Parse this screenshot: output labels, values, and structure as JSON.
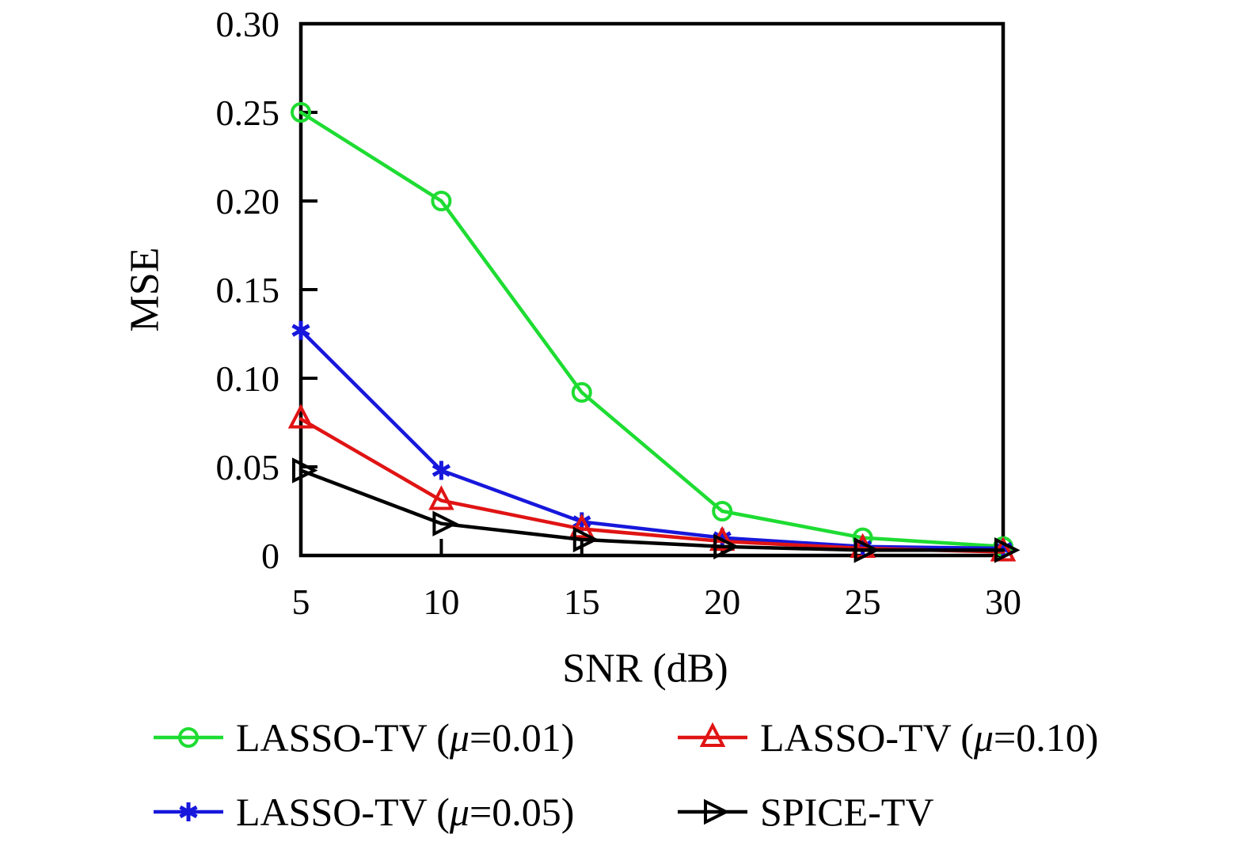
{
  "chart_data": {
    "type": "line",
    "title": "",
    "xlabel": "SNR (dB)",
    "ylabel": "MSE",
    "x": [
      5,
      10,
      15,
      20,
      25,
      30
    ],
    "xlim": [
      5,
      30
    ],
    "ylim": [
      0,
      0.3
    ],
    "x_ticks": [
      "5",
      "10",
      "15",
      "20",
      "25",
      "30"
    ],
    "y_tick_values": [
      0,
      0.05,
      0.1,
      0.15,
      0.2,
      0.25,
      0.3
    ],
    "y_ticks": [
      "0",
      "0.05",
      "0.10",
      "0.15",
      "0.20",
      "0.25",
      "0.30"
    ],
    "grid": false,
    "legend_position": "below-chart",
    "axis_box": true,
    "series": [
      {
        "name": "LASSO-TV (μ=0.01)",
        "color": "#1edc32",
        "marker": "circle",
        "values": [
          0.25,
          0.2,
          0.092,
          0.025,
          0.01,
          0.005
        ]
      },
      {
        "name": "LASSO-TV (μ=0.05)",
        "color": "#1717dc",
        "marker": "asterisk",
        "values": [
          0.127,
          0.048,
          0.019,
          0.01,
          0.005,
          0.004
        ]
      },
      {
        "name": "LASSO-TV (μ=0.10)",
        "color": "#e01414",
        "marker": "triangle-up",
        "values": [
          0.077,
          0.031,
          0.015,
          0.008,
          0.004,
          0.002
        ]
      },
      {
        "name": "SPICE-TV",
        "color": "#000000",
        "marker": "triangle-right",
        "values": [
          0.048,
          0.018,
          0.009,
          0.005,
          0.003,
          0.003
        ]
      }
    ]
  },
  "legend": {
    "entries": [
      {
        "series_index": 0,
        "prefix": "LASSO-TV (",
        "mu": "μ",
        "suffix": "=0.01)"
      },
      {
        "series_index": 2,
        "prefix": "LASSO-TV (",
        "mu": "μ",
        "suffix": "=0.10)"
      },
      {
        "series_index": 1,
        "prefix": "LASSO-TV (",
        "mu": "μ",
        "suffix": "=0.05)"
      },
      {
        "series_index": 3,
        "prefix": "SPICE-TV",
        "mu": "",
        "suffix": ""
      }
    ]
  }
}
